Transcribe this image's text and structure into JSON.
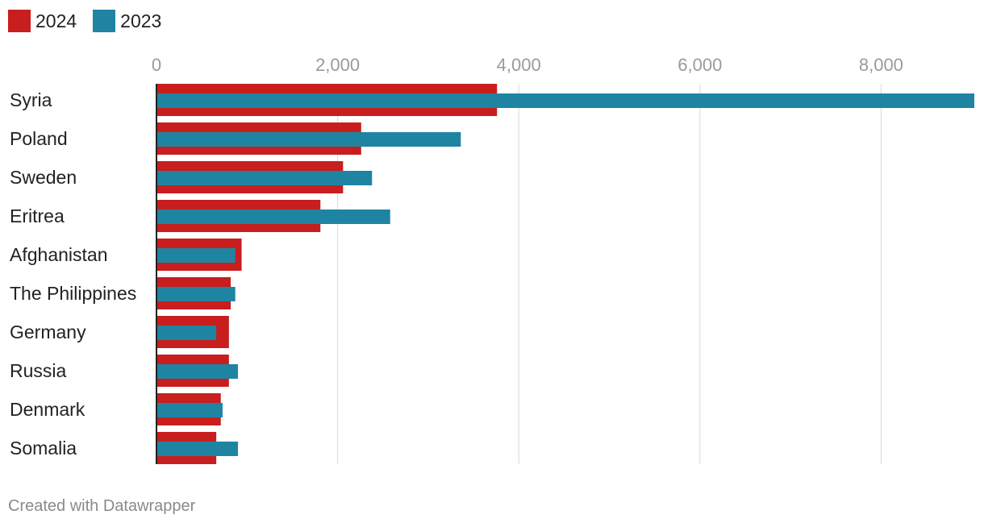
{
  "legend": [
    {
      "label": "2024",
      "color": "#c81e1e"
    },
    {
      "label": "2023",
      "color": "#1f84a2"
    }
  ],
  "footer": {
    "credit": "Created with Datawrapper"
  },
  "chart_data": {
    "type": "bar",
    "orientation": "horizontal",
    "title": "",
    "xlabel": "",
    "ylabel": "",
    "xlim": [
      0,
      9000
    ],
    "ticks": [
      0,
      2000,
      4000,
      6000,
      8000
    ],
    "tick_labels": [
      "0",
      "2,000",
      "4,000",
      "6,000",
      "8,000"
    ],
    "grid": true,
    "legend_position": "top-left",
    "categories": [
      "Syria",
      "Poland",
      "Sweden",
      "Eritrea",
      "Afghanistan",
      "The Philippines",
      "Germany",
      "Russia",
      "Denmark",
      "Somalia"
    ],
    "series": [
      {
        "name": "2024",
        "color": "#c81e1e",
        "values": [
          3760,
          2260,
          2060,
          1810,
          940,
          820,
          800,
          800,
          710,
          660
        ]
      },
      {
        "name": "2023",
        "color": "#1f84a2",
        "values": [
          9030,
          3360,
          2380,
          2580,
          870,
          870,
          660,
          900,
          730,
          900
        ]
      }
    ]
  }
}
